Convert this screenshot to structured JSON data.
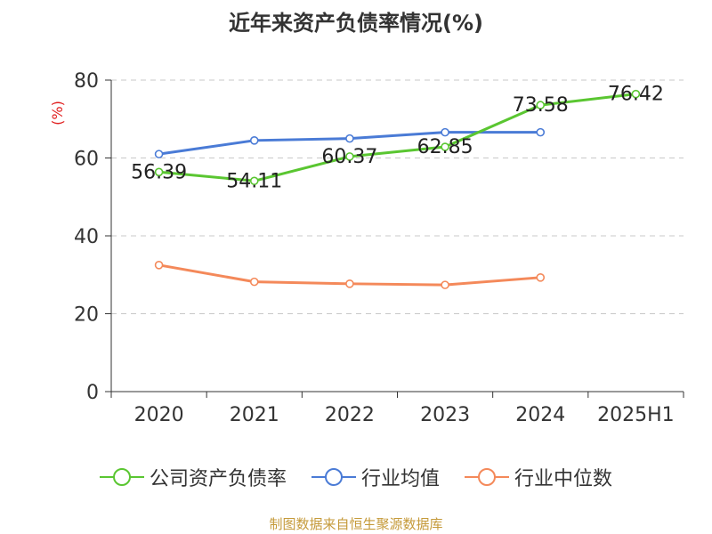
{
  "title": "近年来资产负债率情况(%)",
  "source": "制图数据来自恒生聚源数据库",
  "chart_data": {
    "type": "line",
    "title": "近年来资产负债率情况(%)",
    "categories": [
      "2020",
      "2021",
      "2022",
      "2023",
      "2024",
      "2025H1"
    ],
    "ylabel": "(%)",
    "ylim": [
      0,
      80
    ],
    "yticks": [
      0,
      20,
      40,
      60,
      80
    ],
    "grid": true,
    "legend_position": "bottom",
    "series": [
      {
        "name": "公司资产负债率",
        "color": "#5ac631",
        "values": [
          56.39,
          54.11,
          60.37,
          62.85,
          73.58,
          76.42
        ],
        "labels": [
          "56.39",
          "54.11",
          "60.37",
          "62.85",
          "73.58",
          "76.42"
        ]
      },
      {
        "name": "行业均值",
        "color": "#4a7bd6",
        "values": [
          61.0,
          64.5,
          65.0,
          66.6,
          66.6,
          null
        ]
      },
      {
        "name": "行业中位数",
        "color": "#f4895a",
        "values": [
          32.5,
          28.2,
          27.7,
          27.4,
          29.3,
          null
        ]
      }
    ]
  }
}
